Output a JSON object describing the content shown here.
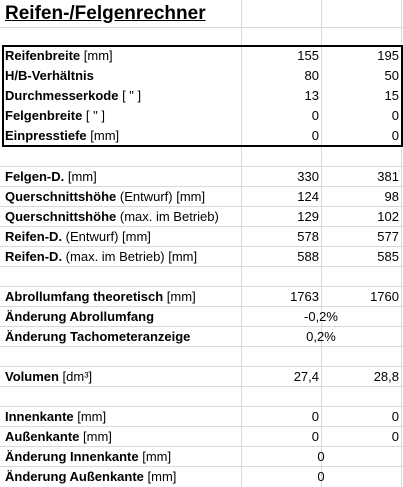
{
  "title": "Reifen-/Felgenrechner",
  "input": [
    {
      "name_b": "Reifenbreite",
      "name_n": " [mm]",
      "v1": "155",
      "v2": "195"
    },
    {
      "name_b": "H/B-Verhältnis",
      "name_n": "",
      "v1": "80",
      "v2": "50"
    },
    {
      "name_b": "Durchmesserkode",
      "name_n": " [ \" ]",
      "v1": "13",
      "v2": "15"
    },
    {
      "name_b": "Felgenbreite",
      "name_n": " [ \" ]",
      "v1": "0",
      "v2": "0"
    },
    {
      "name_b": "Einpresstiefe",
      "name_n": "  [mm]",
      "v1": "0",
      "v2": "0"
    }
  ],
  "dims": [
    {
      "name_b": "Felgen-D.",
      "name_n": "  [mm]",
      "v1": "330",
      "v2": "381"
    },
    {
      "name_b": "Querschnittshöhe",
      "name_n": " (Entwurf)  [mm]",
      "v1": "124",
      "v2": "98"
    },
    {
      "name_b": "Querschnittshöhe",
      "name_n": " (max. im Betrieb)",
      "v1": "129",
      "v2": "102"
    },
    {
      "name_b": "Reifen-D.",
      "name_n": " (Entwurf)  [mm]",
      "v1": "578",
      "v2": "577"
    },
    {
      "name_b": "Reifen-D.",
      "name_n": " (max. im Betrieb) [mm]",
      "v1": "588",
      "v2": "585"
    }
  ],
  "abroll": {
    "name_b": "Abrollumfang theoretisch",
    "name_n": " [mm]",
    "v1": "1763",
    "v2": "1760",
    "change_label": "Änderung Abrollumfang",
    "change_value": "-0,2%",
    "tacho_label": "Änderung Tachometeranzeige",
    "tacho_value": "0,2%"
  },
  "volumen": {
    "name_b": "Volumen",
    "name_n": " [dm³]",
    "v1": "27,4",
    "v2": "28,8"
  },
  "kanten": {
    "innen_b": "Innenkante",
    "innen_n": " [mm]",
    "innen_v1": "0",
    "innen_v2": "0",
    "aussen_b": "Außenkante",
    "aussen_n": " [mm]",
    "aussen_v1": "0",
    "aussen_v2": "0",
    "d_innen_b": "Änderung Innenkante",
    "d_innen_n": " [mm]",
    "d_innen_v": "0",
    "d_aussen_b": "Änderung Außenkante",
    "d_aussen_n": "  [mm]",
    "d_aussen_v": "0"
  }
}
